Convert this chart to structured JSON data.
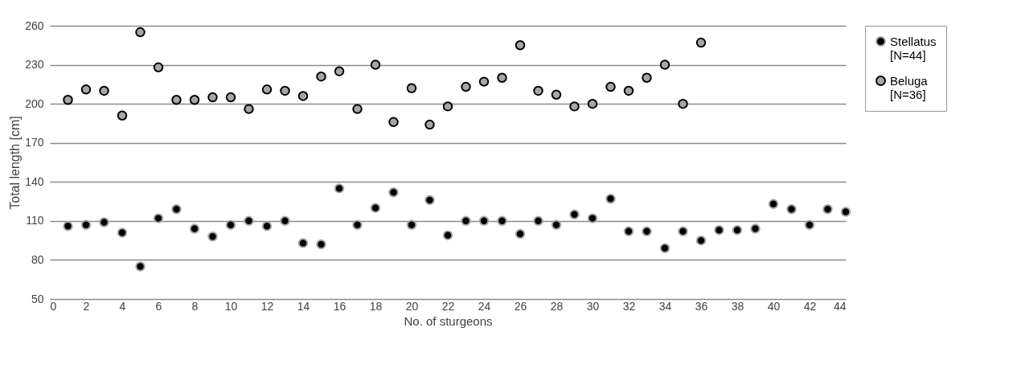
{
  "chart_data": {
    "type": "scatter",
    "xlabel": "No. of sturgeons",
    "ylabel": "Total length [cm]",
    "xlim": [
      0,
      44
    ],
    "xticks": [
      0,
      2,
      4,
      6,
      8,
      10,
      12,
      14,
      16,
      18,
      20,
      22,
      24,
      26,
      28,
      30,
      32,
      34,
      36,
      38,
      40,
      42,
      44
    ],
    "ylim": [
      50,
      260
    ],
    "yticks": [
      50,
      80,
      110,
      140,
      170,
      200,
      230,
      260
    ],
    "grid": "y",
    "legend": "top right",
    "marker": "circle",
    "x": [
      1,
      2,
      3,
      4,
      5,
      6,
      7,
      8,
      9,
      10,
      11,
      12,
      13,
      14,
      15,
      16,
      17,
      18,
      19,
      20,
      21,
      22,
      23,
      24,
      25,
      26,
      27,
      28,
      29,
      30,
      31,
      32,
      33,
      34,
      35,
      36,
      37,
      38,
      39,
      40,
      41,
      42,
      43,
      44
    ],
    "series": [
      {
        "name": "Stellatus\n[N=44]",
        "color": "#000000",
        "values": [
          106,
          107,
          109,
          101,
          75,
          112,
          119,
          104,
          98,
          107,
          110,
          106,
          110,
          93,
          92,
          135,
          107,
          120,
          132,
          107,
          126,
          99,
          110,
          110,
          110,
          100,
          110,
          107,
          115,
          112,
          127,
          102,
          102,
          89,
          102,
          95,
          103,
          103,
          104,
          123,
          119,
          107,
          119,
          117
        ]
      },
      {
        "name": "Beluga\n[N=36]",
        "color": "#a6a6a6",
        "x": [
          1,
          2,
          3,
          4,
          5,
          6,
          7,
          8,
          9,
          10,
          11,
          12,
          13,
          14,
          15,
          16,
          17,
          18,
          19,
          20,
          21,
          22,
          23,
          24,
          25,
          26,
          27,
          28,
          29,
          30,
          31,
          32,
          33,
          34,
          35,
          36
        ],
        "values": [
          203,
          211,
          210,
          191,
          255,
          228,
          203,
          203,
          205,
          205,
          196,
          211,
          210,
          206,
          221,
          225,
          196,
          230,
          186,
          212,
          184,
          198,
          213,
          217,
          220,
          245,
          210,
          207,
          198,
          200,
          213,
          210,
          220,
          230,
          200,
          247
        ]
      }
    ]
  }
}
